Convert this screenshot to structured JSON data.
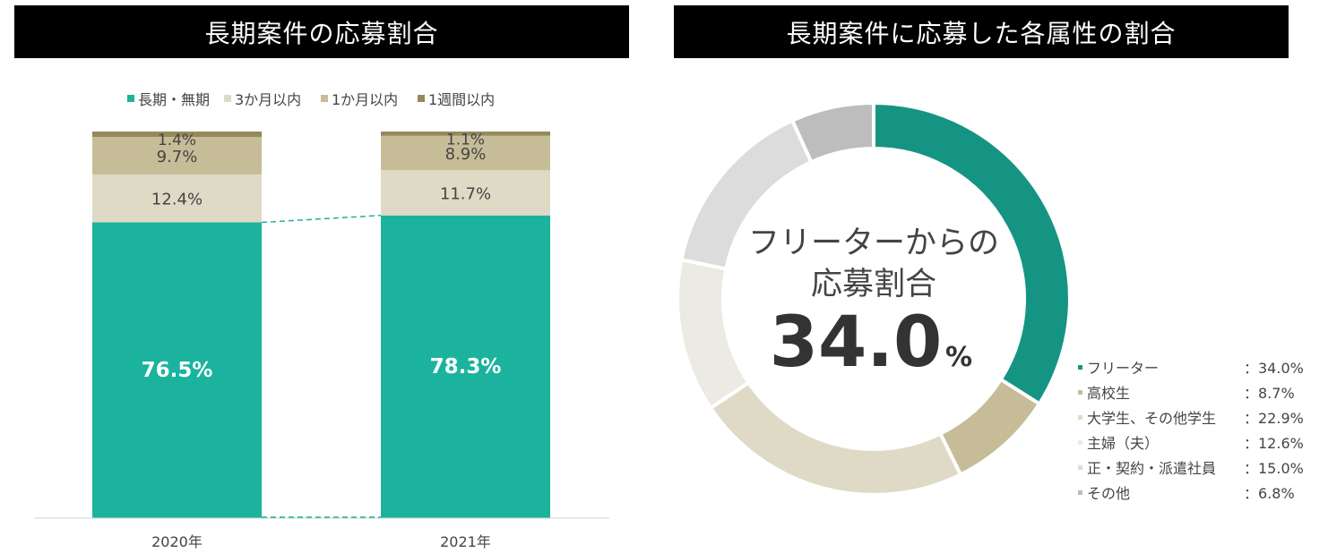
{
  "left_title": "長期案件の応募割合",
  "right_title": "長期案件に応募した各属性の割合",
  "chart_data": [
    {
      "type": "bar",
      "stacked": true,
      "categories": [
        "2020年",
        "2021年"
      ],
      "series": [
        {
          "name": "長期・無期",
          "values": [
            76.5,
            78.3
          ],
          "labels": [
            "76.5%",
            "78.3%"
          ],
          "color": "#1bb39e",
          "label_color": "#ffffff"
        },
        {
          "name": "3か月以内",
          "values": [
            12.4,
            11.7
          ],
          "labels": [
            "12.4%",
            "11.7%"
          ],
          "color": "#dfdac5",
          "label_color": "#444444"
        },
        {
          "name": "1か月以内",
          "values": [
            9.7,
            8.9
          ],
          "labels": [
            "9.7%",
            "8.9%"
          ],
          "color": "#c6bd98",
          "label_color": "#444444"
        },
        {
          "name": "1週間以内",
          "values": [
            1.4,
            1.1
          ],
          "labels": [
            "1.4%",
            "1.1%"
          ],
          "color": "#948a5b",
          "label_color": "#444444"
        }
      ],
      "legend_position": "top",
      "ylim": [
        0,
        100
      ]
    },
    {
      "type": "pie",
      "donut": true,
      "center_text": {
        "line1": "フリーターからの",
        "line2": "応募割合",
        "value": "34.0",
        "unit": "%"
      },
      "slices": [
        {
          "name": "フリーター",
          "value": 34.0,
          "label": "：34.0%",
          "color": "#169483"
        },
        {
          "name": "高校生",
          "value": 8.7,
          "label": "：8.7%",
          "color": "#c6bd98"
        },
        {
          "name": "大学生、その他学生",
          "value": 22.9,
          "label": "：22.9%",
          "color": "#dfdac5"
        },
        {
          "name": "主婦（夫）",
          "value": 12.6,
          "label": "：12.6%",
          "color": "#ecebe3"
        },
        {
          "name": "正・契約・派遣社員",
          "value": 15.0,
          "label": "：15.0%",
          "color": "#dcdcdc"
        },
        {
          "name": "その他",
          "value": 6.8,
          "label": "：6.8%",
          "color": "#bdbdbd"
        }
      ],
      "legend_position": "right"
    }
  ]
}
